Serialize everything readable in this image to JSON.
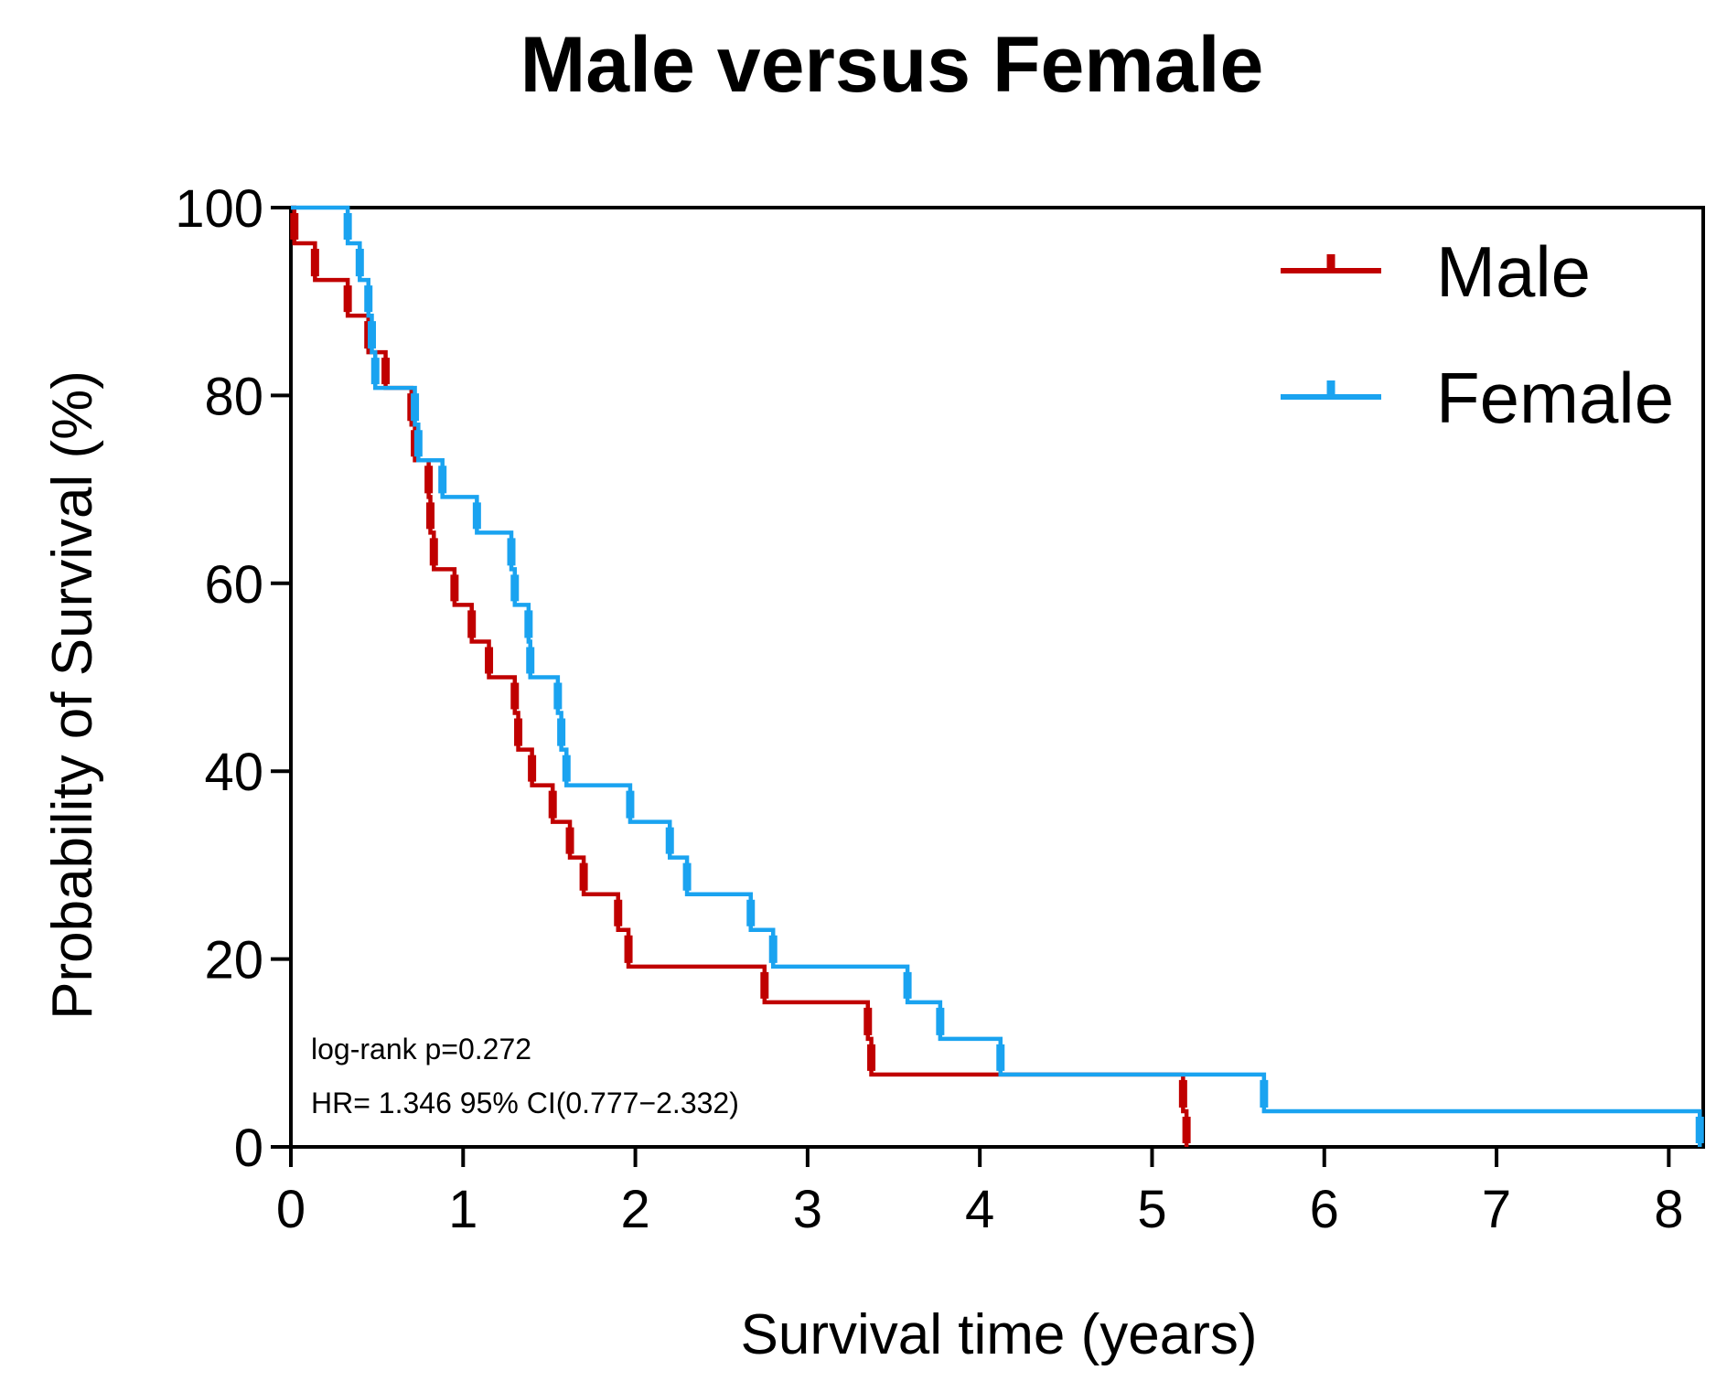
{
  "chart_data": {
    "type": "line",
    "subtype": "kaplan-meier",
    "title": "Male versus Female",
    "xlabel": "Survival time (years)",
    "ylabel": "Probability of Survival (%)",
    "xlim": [
      0,
      8.2
    ],
    "ylim": [
      0,
      100
    ],
    "xticks": [
      "0",
      "1",
      "2",
      "3",
      "4",
      "5",
      "6",
      "7",
      "8"
    ],
    "yticks": [
      "0",
      "20",
      "40",
      "60",
      "80",
      "100"
    ],
    "legend_position": "top-right",
    "annotations": [
      "log-rank p=0.272",
      "HR= 1.346 95% CI(0.777−2.332)"
    ],
    "series": [
      {
        "name": "Male",
        "color": "#c00000",
        "steps": [
          [
            0,
            100
          ],
          [
            0.02,
            96.2
          ],
          [
            0.14,
            92.3
          ],
          [
            0.33,
            88.5
          ],
          [
            0.45,
            84.6
          ],
          [
            0.55,
            80.8
          ],
          [
            0.7,
            76.9
          ],
          [
            0.72,
            73.1
          ],
          [
            0.8,
            69.2
          ],
          [
            0.81,
            65.4
          ],
          [
            0.83,
            61.5
          ],
          [
            0.95,
            57.7
          ],
          [
            1.05,
            53.8
          ],
          [
            1.15,
            50.0
          ],
          [
            1.3,
            46.2
          ],
          [
            1.32,
            42.3
          ],
          [
            1.4,
            38.5
          ],
          [
            1.52,
            34.6
          ],
          [
            1.62,
            30.8
          ],
          [
            1.7,
            26.9
          ],
          [
            1.9,
            23.1
          ],
          [
            1.96,
            19.2
          ],
          [
            2.75,
            15.4
          ],
          [
            3.35,
            11.5
          ],
          [
            3.37,
            7.7
          ],
          [
            5.18,
            3.8
          ],
          [
            5.2,
            0
          ]
        ],
        "end_x": 5.2
      },
      {
        "name": "Female",
        "color": "#1aa3f0",
        "steps": [
          [
            0,
            100
          ],
          [
            0.33,
            96.2
          ],
          [
            0.4,
            92.3
          ],
          [
            0.45,
            88.5
          ],
          [
            0.47,
            84.6
          ],
          [
            0.49,
            80.8
          ],
          [
            0.72,
            76.9
          ],
          [
            0.74,
            73.1
          ],
          [
            0.88,
            69.2
          ],
          [
            1.08,
            65.4
          ],
          [
            1.28,
            61.5
          ],
          [
            1.3,
            57.7
          ],
          [
            1.38,
            53.8
          ],
          [
            1.39,
            50.0
          ],
          [
            1.55,
            46.2
          ],
          [
            1.57,
            42.3
          ],
          [
            1.6,
            38.5
          ],
          [
            1.97,
            34.6
          ],
          [
            2.2,
            30.8
          ],
          [
            2.3,
            26.9
          ],
          [
            2.67,
            23.1
          ],
          [
            2.8,
            19.2
          ],
          [
            3.58,
            15.4
          ],
          [
            3.77,
            11.5
          ],
          [
            4.12,
            7.7
          ],
          [
            5.65,
            3.8
          ],
          [
            8.18,
            0
          ]
        ],
        "end_x": 8.18
      }
    ]
  }
}
